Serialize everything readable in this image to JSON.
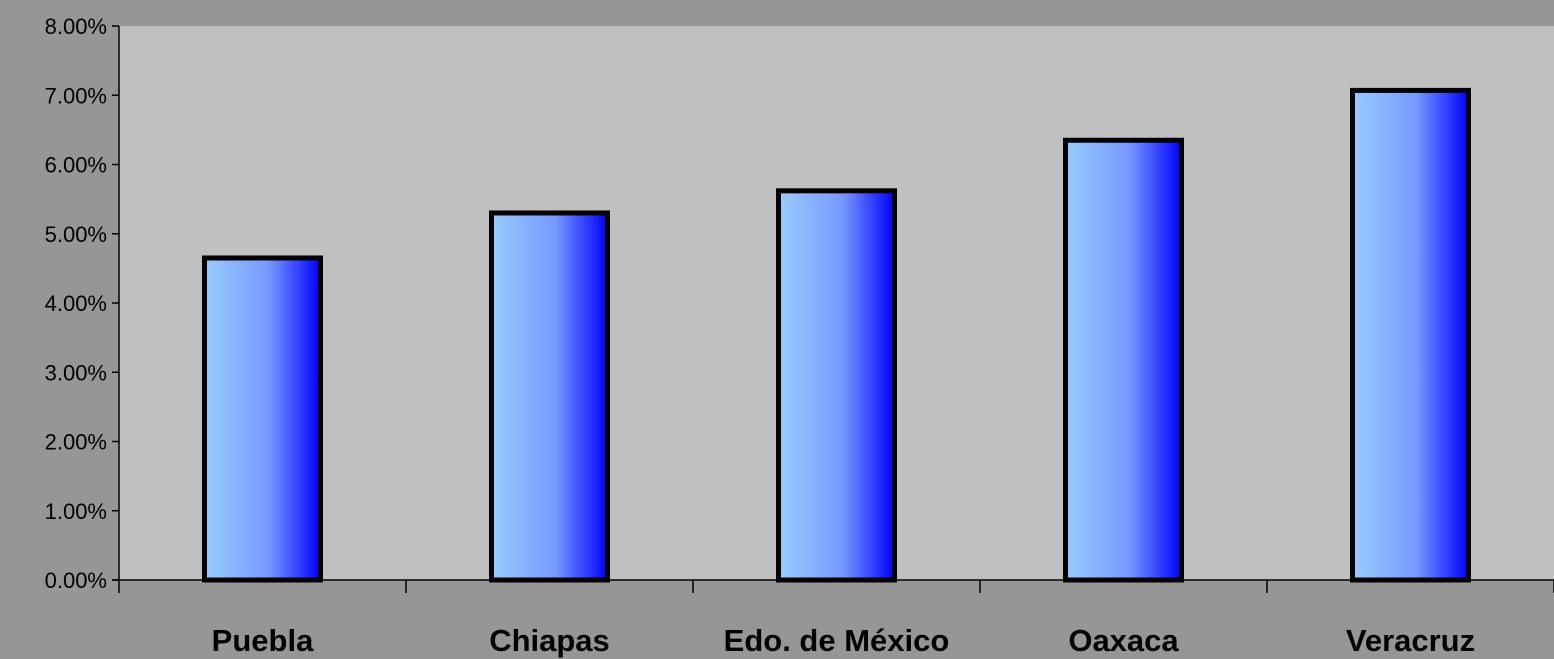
{
  "chart_data": {
    "type": "bar",
    "categories": [
      "Puebla",
      "Chiapas",
      "Edo. de México",
      "Oaxaca",
      "Veracruz"
    ],
    "values": [
      4.65,
      5.3,
      5.62,
      6.35,
      7.07
    ],
    "value_unit": "percent",
    "ylim": [
      0,
      8
    ],
    "yticks": [
      0,
      1,
      2,
      3,
      4,
      5,
      6,
      7,
      8
    ],
    "ytick_labels": [
      "0.00%",
      "1.00%",
      "2.00%",
      "3.00%",
      "4.00%",
      "5.00%",
      "6.00%",
      "7.00%",
      "8.00%"
    ],
    "title": "",
    "xlabel": "",
    "ylabel": "",
    "grid": false,
    "legend": "none",
    "colors": {
      "page_background": "#969696",
      "plot_background": "#C0C0C0",
      "bar_gradient_start": "#99CCFF",
      "bar_gradient_mid": "#7799FF",
      "bar_gradient_end": "#0000FF",
      "bar_outline": "#000000",
      "axis_line": "#000000"
    }
  }
}
